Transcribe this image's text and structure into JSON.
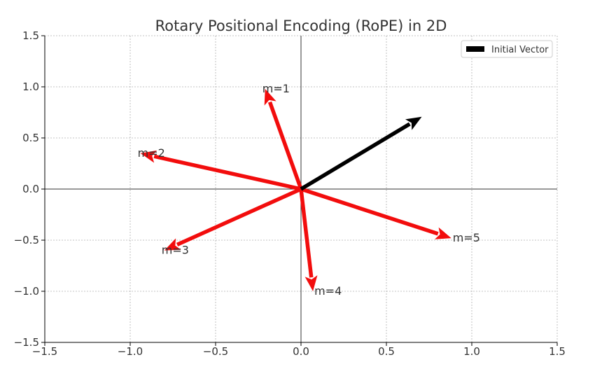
{
  "chart_data": {
    "type": "quiver",
    "title": "Rotary Positional Encoding (RoPE) in 2D",
    "xlabel": "",
    "ylabel": "",
    "xlim": [
      -1.5,
      1.5
    ],
    "ylim": [
      -1.5,
      1.5
    ],
    "grid": true,
    "xticks": [
      -1.5,
      -1.0,
      -0.5,
      0.0,
      0.5,
      1.0,
      1.5
    ],
    "yticks": [
      -1.5,
      -1.0,
      -0.5,
      0.0,
      0.5,
      1.0,
      1.5
    ],
    "xtick_labels": [
      "−1.5",
      "−1.0",
      "−0.5",
      "0.0",
      "0.5",
      "1.0",
      "1.5"
    ],
    "ytick_labels": [
      "−1.5",
      "−1.0",
      "−0.5",
      "0.0",
      "0.5",
      "1.0",
      "1.5"
    ],
    "legend": {
      "placement": "top-right",
      "entries": [
        "Initial Vector"
      ]
    },
    "initial_vector": {
      "x": 0.707,
      "y": 0.707,
      "color": "#000000"
    },
    "rotated_vectors": [
      {
        "label": "m=1",
        "x": -0.21,
        "y": 0.98
      },
      {
        "label": "m=2",
        "x": -0.94,
        "y": 0.35
      },
      {
        "label": "m=3",
        "x": -0.8,
        "y": -0.6
      },
      {
        "label": "m=4",
        "x": 0.07,
        "y": -1.0
      },
      {
        "label": "m=5",
        "x": 0.88,
        "y": -0.48
      }
    ],
    "rotated_color": "#f20d0d"
  }
}
